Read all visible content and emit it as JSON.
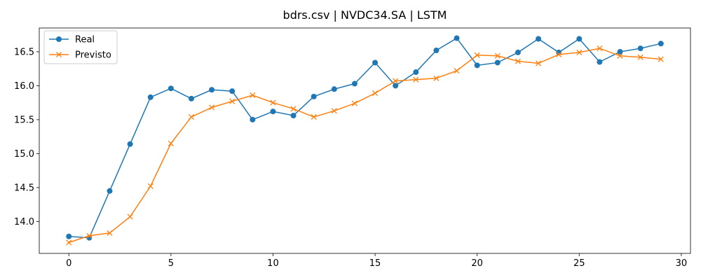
{
  "chart_data": {
    "type": "line",
    "title": "bdrs.csv | NVDC34.SA | LSTM",
    "xlabel": "",
    "ylabel": "",
    "xlim": [
      -1.45,
      30.45
    ],
    "ylim": [
      13.53,
      16.85
    ],
    "x_ticks": [
      0,
      5,
      10,
      15,
      20,
      25,
      30
    ],
    "y_ticks": [
      14.0,
      14.5,
      15.0,
      15.5,
      16.0,
      16.5
    ],
    "grid": false,
    "legend_position": "top-left",
    "x": [
      0,
      1,
      2,
      3,
      4,
      5,
      6,
      7,
      8,
      9,
      10,
      11,
      12,
      13,
      14,
      15,
      16,
      17,
      18,
      19,
      20,
      21,
      22,
      23,
      24,
      25,
      26,
      27,
      28,
      29
    ],
    "series": [
      {
        "name": "Real",
        "color": "#1f77b4",
        "marker": "circle",
        "values": [
          13.78,
          13.76,
          14.45,
          15.14,
          15.83,
          15.96,
          15.81,
          15.94,
          15.92,
          15.5,
          15.62,
          15.56,
          15.84,
          15.95,
          16.03,
          16.34,
          16.0,
          16.2,
          16.52,
          16.7,
          16.3,
          16.34,
          16.49,
          16.69,
          16.49,
          16.69,
          16.35,
          16.5,
          16.55,
          16.62
        ]
      },
      {
        "name": "Previsto",
        "color": "#ff7f0e",
        "marker": "x",
        "values": [
          13.69,
          13.79,
          13.83,
          14.07,
          14.52,
          15.15,
          15.54,
          15.68,
          15.77,
          15.86,
          15.75,
          15.66,
          15.54,
          15.63,
          15.74,
          15.89,
          16.07,
          16.09,
          16.11,
          16.22,
          16.45,
          16.44,
          16.36,
          16.33,
          16.46,
          16.49,
          16.55,
          16.44,
          16.42,
          16.39
        ]
      }
    ]
  }
}
